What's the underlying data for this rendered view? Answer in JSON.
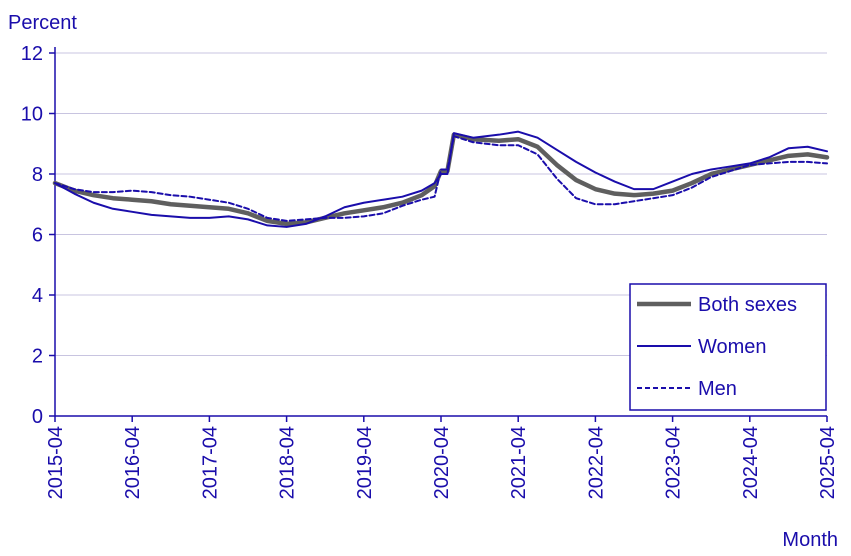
{
  "chart_data": {
    "type": "line",
    "ylabel": "Percent",
    "xlabel": "Month",
    "ylim": [
      0,
      12
    ],
    "yticks": [
      "0",
      "2",
      "4",
      "6",
      "8",
      "10",
      "12"
    ],
    "xticks": [
      "2015-04",
      "2016-04",
      "2017-04",
      "2018-04",
      "2019-04",
      "2020-04",
      "2021-04",
      "2022-04",
      "2023-04",
      "2024-04",
      "2025-04"
    ],
    "grid": true,
    "legend_position": "bottom-right",
    "colors": {
      "axis": "#1a0dab",
      "grid": "#c8c4e0",
      "both": "#5f5f5f",
      "women": "#1a0dab",
      "men": "#1a0dab"
    },
    "series": [
      {
        "name": "Both sexes",
        "style": "thick-gray",
        "points": [
          [
            "2015-04",
            7.7
          ],
          [
            "2015-07",
            7.45
          ],
          [
            "2015-10",
            7.3
          ],
          [
            "2016-01",
            7.2
          ],
          [
            "2016-04",
            7.15
          ],
          [
            "2016-07",
            7.1
          ],
          [
            "2016-10",
            7.0
          ],
          [
            "2017-01",
            6.95
          ],
          [
            "2017-04",
            6.9
          ],
          [
            "2017-07",
            6.85
          ],
          [
            "2017-10",
            6.7
          ],
          [
            "2018-01",
            6.45
          ],
          [
            "2018-04",
            6.35
          ],
          [
            "2018-07",
            6.4
          ],
          [
            "2018-10",
            6.55
          ],
          [
            "2019-01",
            6.7
          ],
          [
            "2019-04",
            6.8
          ],
          [
            "2019-07",
            6.9
          ],
          [
            "2019-10",
            7.05
          ],
          [
            "2020-01",
            7.3
          ],
          [
            "2020-03",
            7.6
          ],
          [
            "2020-04",
            8.1
          ],
          [
            "2020-05",
            8.1
          ],
          [
            "2020-06",
            9.3
          ],
          [
            "2020-09",
            9.15
          ],
          [
            "2021-01",
            9.1
          ],
          [
            "2021-04",
            9.15
          ],
          [
            "2021-07",
            8.9
          ],
          [
            "2021-10",
            8.3
          ],
          [
            "2022-01",
            7.8
          ],
          [
            "2022-04",
            7.5
          ],
          [
            "2022-07",
            7.35
          ],
          [
            "2022-10",
            7.3
          ],
          [
            "2023-01",
            7.35
          ],
          [
            "2023-04",
            7.45
          ],
          [
            "2023-07",
            7.7
          ],
          [
            "2023-10",
            8.0
          ],
          [
            "2024-01",
            8.15
          ],
          [
            "2024-04",
            8.3
          ],
          [
            "2024-07",
            8.45
          ],
          [
            "2024-10",
            8.6
          ],
          [
            "2025-01",
            8.65
          ],
          [
            "2025-04",
            8.55
          ]
        ]
      },
      {
        "name": "Women",
        "style": "solid",
        "points": [
          [
            "2015-04",
            7.7
          ],
          [
            "2015-07",
            7.35
          ],
          [
            "2015-10",
            7.05
          ],
          [
            "2016-01",
            6.85
          ],
          [
            "2016-04",
            6.75
          ],
          [
            "2016-07",
            6.65
          ],
          [
            "2016-10",
            6.6
          ],
          [
            "2017-01",
            6.55
          ],
          [
            "2017-04",
            6.55
          ],
          [
            "2017-07",
            6.6
          ],
          [
            "2017-10",
            6.5
          ],
          [
            "2018-01",
            6.3
          ],
          [
            "2018-04",
            6.25
          ],
          [
            "2018-07",
            6.35
          ],
          [
            "2018-10",
            6.6
          ],
          [
            "2019-01",
            6.9
          ],
          [
            "2019-04",
            7.05
          ],
          [
            "2019-07",
            7.15
          ],
          [
            "2019-10",
            7.25
          ],
          [
            "2020-01",
            7.45
          ],
          [
            "2020-03",
            7.7
          ],
          [
            "2020-04",
            8.0
          ],
          [
            "2020-05",
            8.0
          ],
          [
            "2020-06",
            9.35
          ],
          [
            "2020-09",
            9.2
          ],
          [
            "2021-01",
            9.3
          ],
          [
            "2021-04",
            9.4
          ],
          [
            "2021-07",
            9.2
          ],
          [
            "2021-10",
            8.8
          ],
          [
            "2022-01",
            8.4
          ],
          [
            "2022-04",
            8.05
          ],
          [
            "2022-07",
            7.75
          ],
          [
            "2022-10",
            7.5
          ],
          [
            "2023-01",
            7.5
          ],
          [
            "2023-04",
            7.75
          ],
          [
            "2023-07",
            8.0
          ],
          [
            "2023-10",
            8.15
          ],
          [
            "2024-01",
            8.25
          ],
          [
            "2024-04",
            8.35
          ],
          [
            "2024-07",
            8.55
          ],
          [
            "2024-10",
            8.85
          ],
          [
            "2025-01",
            8.9
          ],
          [
            "2025-04",
            8.75
          ]
        ]
      },
      {
        "name": "Men",
        "style": "dashed",
        "points": [
          [
            "2015-04",
            7.7
          ],
          [
            "2015-07",
            7.5
          ],
          [
            "2015-10",
            7.4
          ],
          [
            "2016-01",
            7.4
          ],
          [
            "2016-04",
            7.45
          ],
          [
            "2016-07",
            7.4
          ],
          [
            "2016-10",
            7.3
          ],
          [
            "2017-01",
            7.25
          ],
          [
            "2017-04",
            7.15
          ],
          [
            "2017-07",
            7.05
          ],
          [
            "2017-10",
            6.85
          ],
          [
            "2018-01",
            6.55
          ],
          [
            "2018-04",
            6.45
          ],
          [
            "2018-07",
            6.5
          ],
          [
            "2018-10",
            6.55
          ],
          [
            "2019-01",
            6.55
          ],
          [
            "2019-04",
            6.6
          ],
          [
            "2019-07",
            6.7
          ],
          [
            "2019-10",
            6.95
          ],
          [
            "2020-01",
            7.15
          ],
          [
            "2020-03",
            7.25
          ],
          [
            "2020-04",
            8.15
          ],
          [
            "2020-05",
            8.15
          ],
          [
            "2020-06",
            9.25
          ],
          [
            "2020-09",
            9.05
          ],
          [
            "2021-01",
            8.95
          ],
          [
            "2021-04",
            8.95
          ],
          [
            "2021-07",
            8.65
          ],
          [
            "2021-10",
            7.85
          ],
          [
            "2022-01",
            7.2
          ],
          [
            "2022-04",
            7.0
          ],
          [
            "2022-07",
            7.0
          ],
          [
            "2022-10",
            7.1
          ],
          [
            "2023-01",
            7.2
          ],
          [
            "2023-04",
            7.3
          ],
          [
            "2023-07",
            7.55
          ],
          [
            "2023-10",
            7.9
          ],
          [
            "2024-01",
            8.1
          ],
          [
            "2024-04",
            8.3
          ],
          [
            "2024-07",
            8.35
          ],
          [
            "2024-10",
            8.4
          ],
          [
            "2025-01",
            8.4
          ],
          [
            "2025-04",
            8.35
          ]
        ]
      }
    ]
  }
}
